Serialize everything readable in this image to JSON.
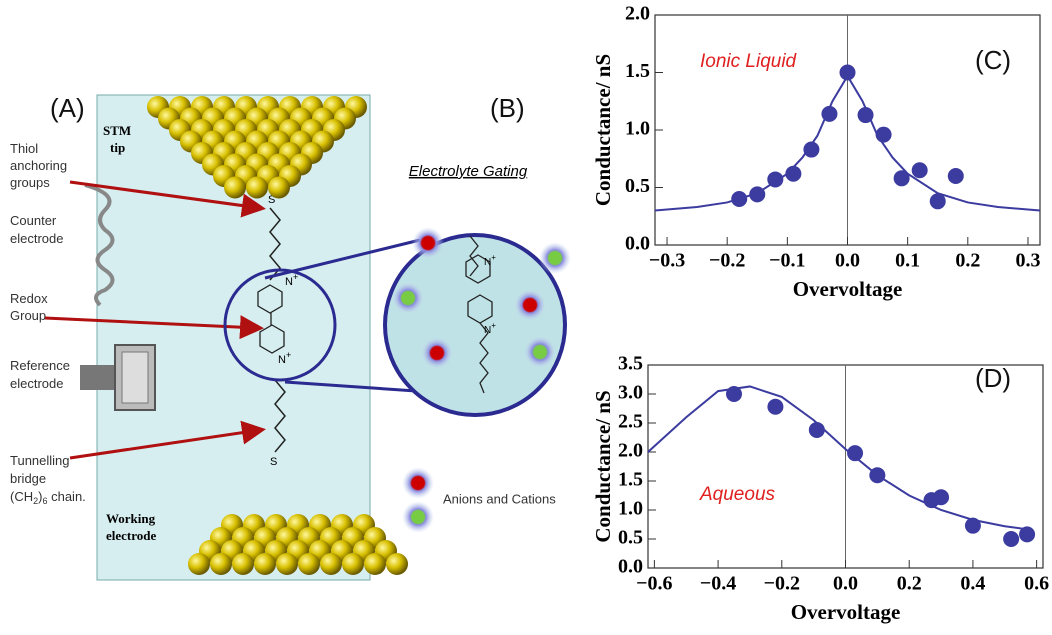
{
  "diagram": {
    "panel_a": "(A)",
    "panel_b": "(B)",
    "stm_tip": [
      "STM",
      "tip"
    ],
    "thiol": [
      "Thiol",
      "anchoring",
      "groups"
    ],
    "counter": [
      "Counter",
      "electrode"
    ],
    "redox": [
      "Redox",
      "Group"
    ],
    "reference": [
      "Reference",
      "electrode"
    ],
    "tunnelling": [
      "Tunnelling",
      "bridge"
    ],
    "chain": {
      "open": "(CH",
      "sub1": "2",
      ")": ")",
      "sub2": "6",
      "rest": " chain."
    },
    "working": [
      "Working",
      "electrode"
    ],
    "atoms": {
      "s": "S",
      "n": "N",
      "plus": "+"
    },
    "gating": "Electrolyte Gating",
    "ions": "Anions and Cations"
  },
  "chart_data": [
    {
      "type": "scatter",
      "annotation": "Ionic Liquid",
      "panel": "(C)",
      "xlabel": "Overvoltage",
      "ylabel": "Conductance/ nS",
      "color": "#3b3ba0",
      "x": [
        -0.18,
        -0.15,
        -0.12,
        -0.09,
        -0.06,
        -0.03,
        0.0,
        0.03,
        0.06,
        0.09,
        0.12,
        0.15,
        0.18
      ],
      "values": [
        0.4,
        0.44,
        0.57,
        0.62,
        0.83,
        1.14,
        1.5,
        1.13,
        0.96,
        0.58,
        0.65,
        0.38,
        0.6
      ],
      "fit": {
        "x": [
          -0.32,
          -0.25,
          -0.2,
          -0.15,
          -0.1,
          -0.075,
          -0.05,
          -0.025,
          0,
          0.025,
          0.05,
          0.075,
          0.1,
          0.15,
          0.2,
          0.25,
          0.32
        ],
        "values": [
          0.3,
          0.33,
          0.37,
          0.45,
          0.62,
          0.76,
          0.95,
          1.25,
          1.47,
          1.25,
          0.95,
          0.76,
          0.62,
          0.45,
          0.37,
          0.33,
          0.3
        ]
      },
      "xlim": [
        -0.32,
        0.32
      ],
      "ylim": [
        0,
        2
      ],
      "xticks": [
        {
          "value": -0.3,
          "label": "−0.3"
        },
        {
          "value": -0.2,
          "label": "−0.2"
        },
        {
          "value": -0.1,
          "label": "−0.1"
        },
        {
          "value": 0,
          "label": "0.0"
        },
        {
          "value": 0.1,
          "label": "0.1"
        },
        {
          "value": 0.2,
          "label": "0.2"
        },
        {
          "value": 0.3,
          "label": "0.3"
        }
      ],
      "yticks": [
        {
          "value": 0,
          "label": "0.0"
        },
        {
          "value": 0.5,
          "label": "0.5"
        },
        {
          "value": 1,
          "label": "1.0"
        },
        {
          "value": 1.5,
          "label": "1.5"
        },
        {
          "value": 2,
          "label": "2.0"
        }
      ]
    },
    {
      "type": "scatter",
      "annotation": "Aqueous",
      "panel": "(D)",
      "xlabel": "Overvoltage",
      "ylabel": "Conductance/ nS",
      "color": "#3b3ba0",
      "x": [
        -0.35,
        -0.22,
        -0.09,
        0.03,
        0.1,
        0.27,
        0.3,
        0.4,
        0.52,
        0.57
      ],
      "values": [
        3.0,
        2.78,
        2.38,
        1.98,
        1.6,
        1.17,
        1.22,
        0.73,
        0.5,
        0.58
      ],
      "fit": {
        "x": [
          -0.62,
          -0.5,
          -0.4,
          -0.3,
          -0.2,
          -0.1,
          0,
          0.1,
          0.2,
          0.3,
          0.4,
          0.5,
          0.58
        ],
        "values": [
          2.0,
          2.6,
          3.05,
          3.13,
          2.95,
          2.55,
          2.05,
          1.6,
          1.25,
          1.0,
          0.83,
          0.72,
          0.66
        ]
      },
      "xlim": [
        -0.62,
        0.62
      ],
      "ylim": [
        0,
        3.5
      ],
      "xticks": [
        {
          "value": -0.6,
          "label": "−0.6"
        },
        {
          "value": -0.4,
          "label": "−0.4"
        },
        {
          "value": -0.2,
          "label": "−0.2"
        },
        {
          "value": 0,
          "label": "0.0"
        },
        {
          "value": 0.2,
          "label": "0.2"
        },
        {
          "value": 0.4,
          "label": "0.4"
        },
        {
          "value": 0.6,
          "label": "0.6"
        }
      ],
      "yticks": [
        {
          "value": 0,
          "label": "0.0"
        },
        {
          "value": 0.5,
          "label": "0.5"
        },
        {
          "value": 1,
          "label": "1.0"
        },
        {
          "value": 1.5,
          "label": "1.5"
        },
        {
          "value": 2,
          "label": "2.0"
        },
        {
          "value": 2.5,
          "label": "2.5"
        },
        {
          "value": 3,
          "label": "3.0"
        },
        {
          "value": 3.5,
          "label": "3.5"
        }
      ]
    }
  ]
}
